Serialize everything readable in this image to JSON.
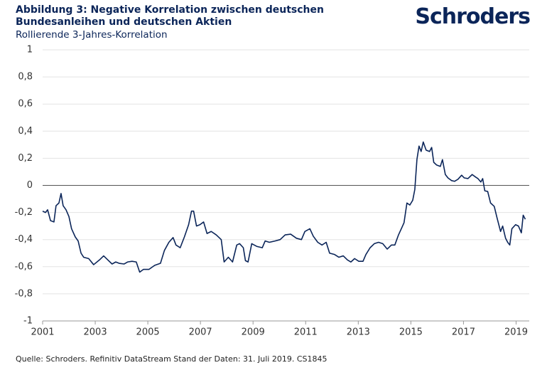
{
  "brand": "Schroders",
  "chart_data": {
    "type": "line",
    "title": "Abbildung 3: Negative Korrelation zwischen deutschen Bundesanleihen und deutschen Aktien",
    "subtitle": "Rollierende 3-Jahres-Korrelation",
    "source": "Quelle: Schroders. Refinitiv DataStream Stand der Daten: 31. Juli 2019. CS1845",
    "color": "#0b2559",
    "grid": true,
    "xlim": [
      2001,
      2019.5
    ],
    "xticks": [
      2001,
      2003,
      2005,
      2007,
      2009,
      2011,
      2013,
      2015,
      2017,
      2019
    ],
    "ylim": [
      -1,
      1
    ],
    "yticks": [
      -1,
      {
        "value": -0.8,
        "label": "-0,8"
      },
      {
        "value": -0.6,
        "label": "-0,6"
      },
      {
        "value": -0.4,
        "label": "-0,4"
      },
      {
        "value": -0.2,
        "label": "-0,2"
      },
      0,
      {
        "value": 0.2,
        "label": "0,2"
      },
      {
        "value": 0.4,
        "label": "0,4"
      },
      {
        "value": 0.6,
        "label": "0,6"
      },
      {
        "value": 0.8,
        "label": "0,8"
      },
      1
    ],
    "x": [
      2001.0,
      2001.11,
      2001.19,
      2001.3,
      2001.43,
      2001.51,
      2001.62,
      2001.7,
      2001.78,
      2001.89,
      2002.0,
      2002.1,
      2002.24,
      2002.35,
      2002.46,
      2002.56,
      2002.75,
      2002.94,
      2003.16,
      2003.32,
      2003.48,
      2003.64,
      2003.78,
      2003.91,
      2004.1,
      2004.23,
      2004.4,
      2004.56,
      2004.69,
      2004.83,
      2005.04,
      2005.26,
      2005.48,
      2005.63,
      2005.8,
      2005.96,
      2006.07,
      2006.23,
      2006.39,
      2006.55,
      2006.66,
      2006.74,
      2006.85,
      2006.98,
      2007.12,
      2007.25,
      2007.41,
      2007.6,
      2007.79,
      2007.9,
      2008.06,
      2008.22,
      2008.38,
      2008.49,
      2008.63,
      2008.71,
      2008.81,
      2008.95,
      2009.14,
      2009.35,
      2009.46,
      2009.62,
      2009.84,
      2010.03,
      2010.22,
      2010.43,
      2010.65,
      2010.84,
      2010.97,
      2011.16,
      2011.29,
      2011.46,
      2011.62,
      2011.78,
      2011.91,
      2012.1,
      2012.26,
      2012.43,
      2012.59,
      2012.72,
      2012.86,
      2013.02,
      2013.18,
      2013.29,
      2013.45,
      2013.61,
      2013.77,
      2013.93,
      2014.1,
      2014.26,
      2014.39,
      2014.53,
      2014.66,
      2014.74,
      2014.85,
      2014.96,
      2015.07,
      2015.15,
      2015.23,
      2015.31,
      2015.39,
      2015.47,
      2015.58,
      2015.71,
      2015.79,
      2015.87,
      2015.98,
      2016.12,
      2016.2,
      2016.31,
      2016.41,
      2016.55,
      2016.66,
      2016.79,
      2016.93,
      2017.03,
      2017.17,
      2017.33,
      2017.47,
      2017.55,
      2017.66,
      2017.73,
      2017.81,
      2017.92,
      2018.03,
      2018.17,
      2018.27,
      2018.41,
      2018.49,
      2018.6,
      2018.68,
      2018.76,
      2018.84,
      2018.98,
      2019.09,
      2019.2,
      2019.27,
      2019.35
    ],
    "values": [
      -0.19,
      -0.2,
      -0.18,
      -0.26,
      -0.27,
      -0.15,
      -0.13,
      -0.06,
      -0.15,
      -0.18,
      -0.23,
      -0.32,
      -0.38,
      -0.41,
      -0.5,
      -0.53,
      -0.54,
      -0.585,
      -0.55,
      -0.52,
      -0.55,
      -0.58,
      -0.565,
      -0.575,
      -0.58,
      -0.565,
      -0.56,
      -0.565,
      -0.64,
      -0.62,
      -0.62,
      -0.59,
      -0.575,
      -0.48,
      -0.42,
      -0.385,
      -0.44,
      -0.46,
      -0.38,
      -0.29,
      -0.19,
      -0.19,
      -0.3,
      -0.29,
      -0.27,
      -0.355,
      -0.34,
      -0.365,
      -0.4,
      -0.565,
      -0.53,
      -0.565,
      -0.44,
      -0.43,
      -0.46,
      -0.555,
      -0.565,
      -0.43,
      -0.45,
      -0.46,
      -0.41,
      -0.42,
      -0.41,
      -0.4,
      -0.365,
      -0.36,
      -0.39,
      -0.4,
      -0.34,
      -0.32,
      -0.375,
      -0.42,
      -0.44,
      -0.42,
      -0.5,
      -0.51,
      -0.53,
      -0.52,
      -0.55,
      -0.565,
      -0.54,
      -0.56,
      -0.56,
      -0.51,
      -0.46,
      -0.43,
      -0.42,
      -0.43,
      -0.47,
      -0.44,
      -0.44,
      -0.365,
      -0.31,
      -0.275,
      -0.13,
      -0.145,
      -0.11,
      -0.03,
      0.19,
      0.29,
      0.25,
      0.32,
      0.26,
      0.25,
      0.28,
      0.17,
      0.15,
      0.14,
      0.19,
      0.08,
      0.055,
      0.035,
      0.03,
      0.045,
      0.075,
      0.055,
      0.05,
      0.08,
      0.06,
      0.05,
      0.025,
      0.05,
      -0.04,
      -0.045,
      -0.13,
      -0.155,
      -0.235,
      -0.34,
      -0.3,
      -0.39,
      -0.42,
      -0.44,
      -0.32,
      -0.29,
      -0.3,
      -0.35,
      -0.22,
      -0.25
    ]
  }
}
